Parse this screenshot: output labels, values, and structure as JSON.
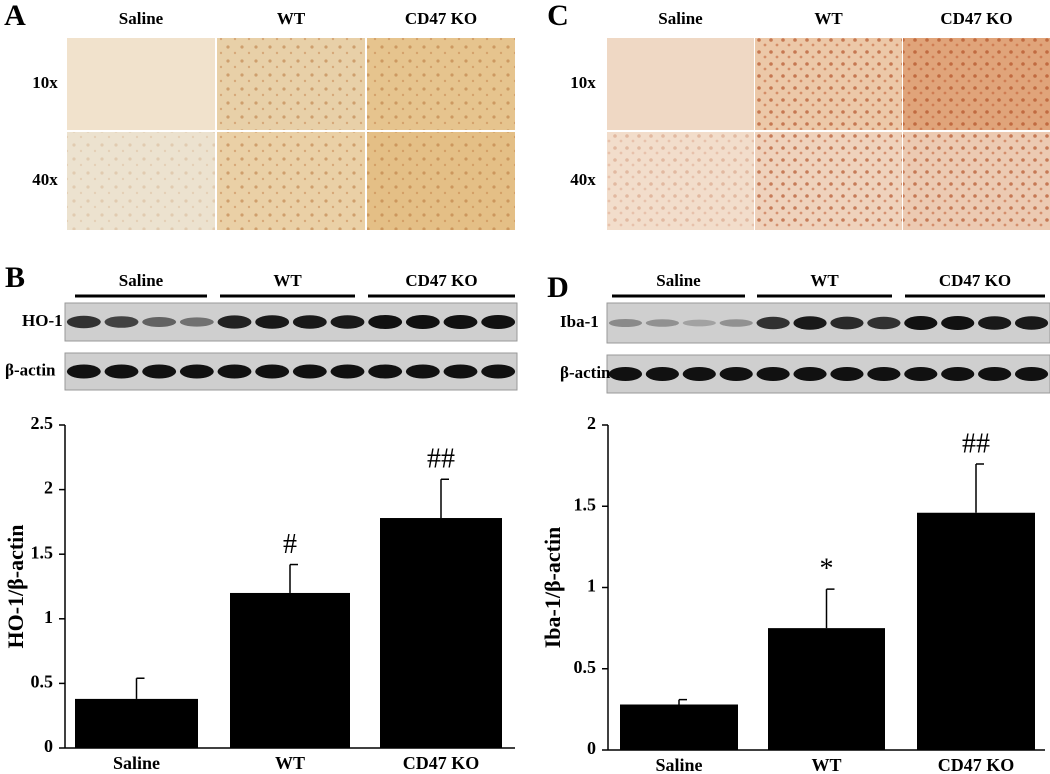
{
  "panels": [
    {
      "letter": "A",
      "columns": [
        "Saline",
        "WT",
        "CD47 KO"
      ],
      "rows": [
        "10x",
        "40x"
      ]
    },
    {
      "letter": "C",
      "columns": [
        "Saline",
        "WT",
        "CD47 KO"
      ],
      "rows": [
        "10x",
        "40x"
      ]
    }
  ],
  "blots": [
    {
      "letter": "B",
      "groups": [
        "Saline",
        "WT",
        "CD47 KO"
      ],
      "rows": [
        "HO-1",
        "β-actin"
      ]
    },
    {
      "letter": "D",
      "groups": [
        "Saline",
        "WT",
        "CD47 KO"
      ],
      "rows": [
        "Iba-1",
        "β-actin"
      ]
    }
  ],
  "chart_data": [
    {
      "type": "bar",
      "y_label": "HO-1/β-actin",
      "categories": [
        "Saline",
        "WT",
        "CD47 KO"
      ],
      "values": [
        0.38,
        1.2,
        1.78
      ],
      "errors": [
        0.16,
        0.22,
        0.3
      ],
      "annotations": [
        null,
        "#",
        "##"
      ],
      "color": "#000000",
      "ylim": [
        0,
        2.5
      ],
      "yticks": [
        0,
        0.5,
        1,
        1.5,
        2,
        2.5
      ]
    },
    {
      "type": "bar",
      "y_label": "Iba-1/β-actin",
      "categories": [
        "Saline",
        "WT",
        "CD47 KO"
      ],
      "values": [
        0.28,
        0.75,
        1.46
      ],
      "errors": [
        0.03,
        0.24,
        0.3
      ],
      "annotations": [
        null,
        "*",
        "##"
      ],
      "color": "#000000",
      "ylim": [
        0,
        2
      ],
      "yticks": [
        0,
        0.5,
        1,
        1.5,
        2
      ]
    }
  ]
}
